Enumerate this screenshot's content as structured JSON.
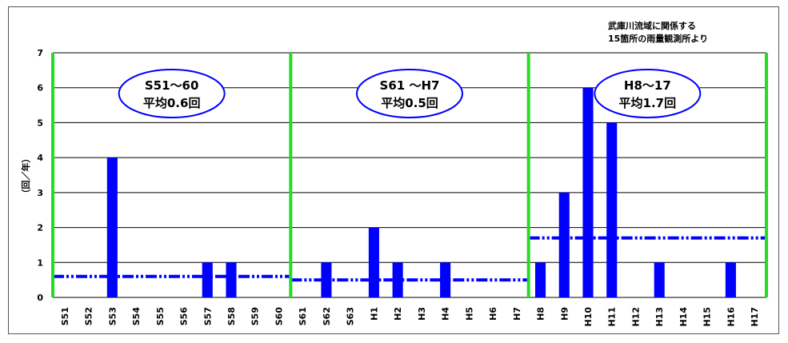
{
  "chart_data": {
    "type": "bar",
    "note_lines": [
      "武庫川流域に関係する",
      "15箇所の雨量観測所より"
    ],
    "ylabel": "（回／年）",
    "ylim": [
      0,
      7
    ],
    "yticks": [
      0,
      1,
      2,
      3,
      4,
      5,
      6,
      7
    ],
    "grid": true,
    "categories": [
      "S51",
      "S52",
      "S53",
      "S54",
      "S55",
      "S56",
      "S57",
      "S58",
      "S59",
      "S60",
      "S61",
      "S62",
      "S63",
      "H1",
      "H2",
      "H3",
      "H4",
      "H5",
      "H6",
      "H7",
      "H8",
      "H9",
      "H10",
      "H11",
      "H12",
      "H13",
      "H14",
      "H15",
      "H16",
      "H17"
    ],
    "values": [
      0,
      0,
      4,
      0,
      0,
      0,
      1,
      1,
      0,
      0,
      0,
      1,
      0,
      2,
      1,
      0,
      1,
      0,
      0,
      0,
      1,
      3,
      6,
      5,
      0,
      1,
      0,
      0,
      1,
      0
    ],
    "periods": [
      {
        "label": "S51～60",
        "average_label": "平均0.6回",
        "average": 0.6,
        "from": "S51",
        "to": "S60"
      },
      {
        "label": "S61 ～H7",
        "average_label": "平均0.5回",
        "average": 0.5,
        "from": "S61",
        "to": "H7"
      },
      {
        "label": "H8～17",
        "average_label": "平均1.7回",
        "average": 1.7,
        "from": "H8",
        "to": "H17"
      }
    ],
    "colors": {
      "bar": "#0000ff",
      "average_line": "#0000ff",
      "divider": "#22dd22",
      "grid": "#000000",
      "oval_border": "#0000ff"
    }
  }
}
